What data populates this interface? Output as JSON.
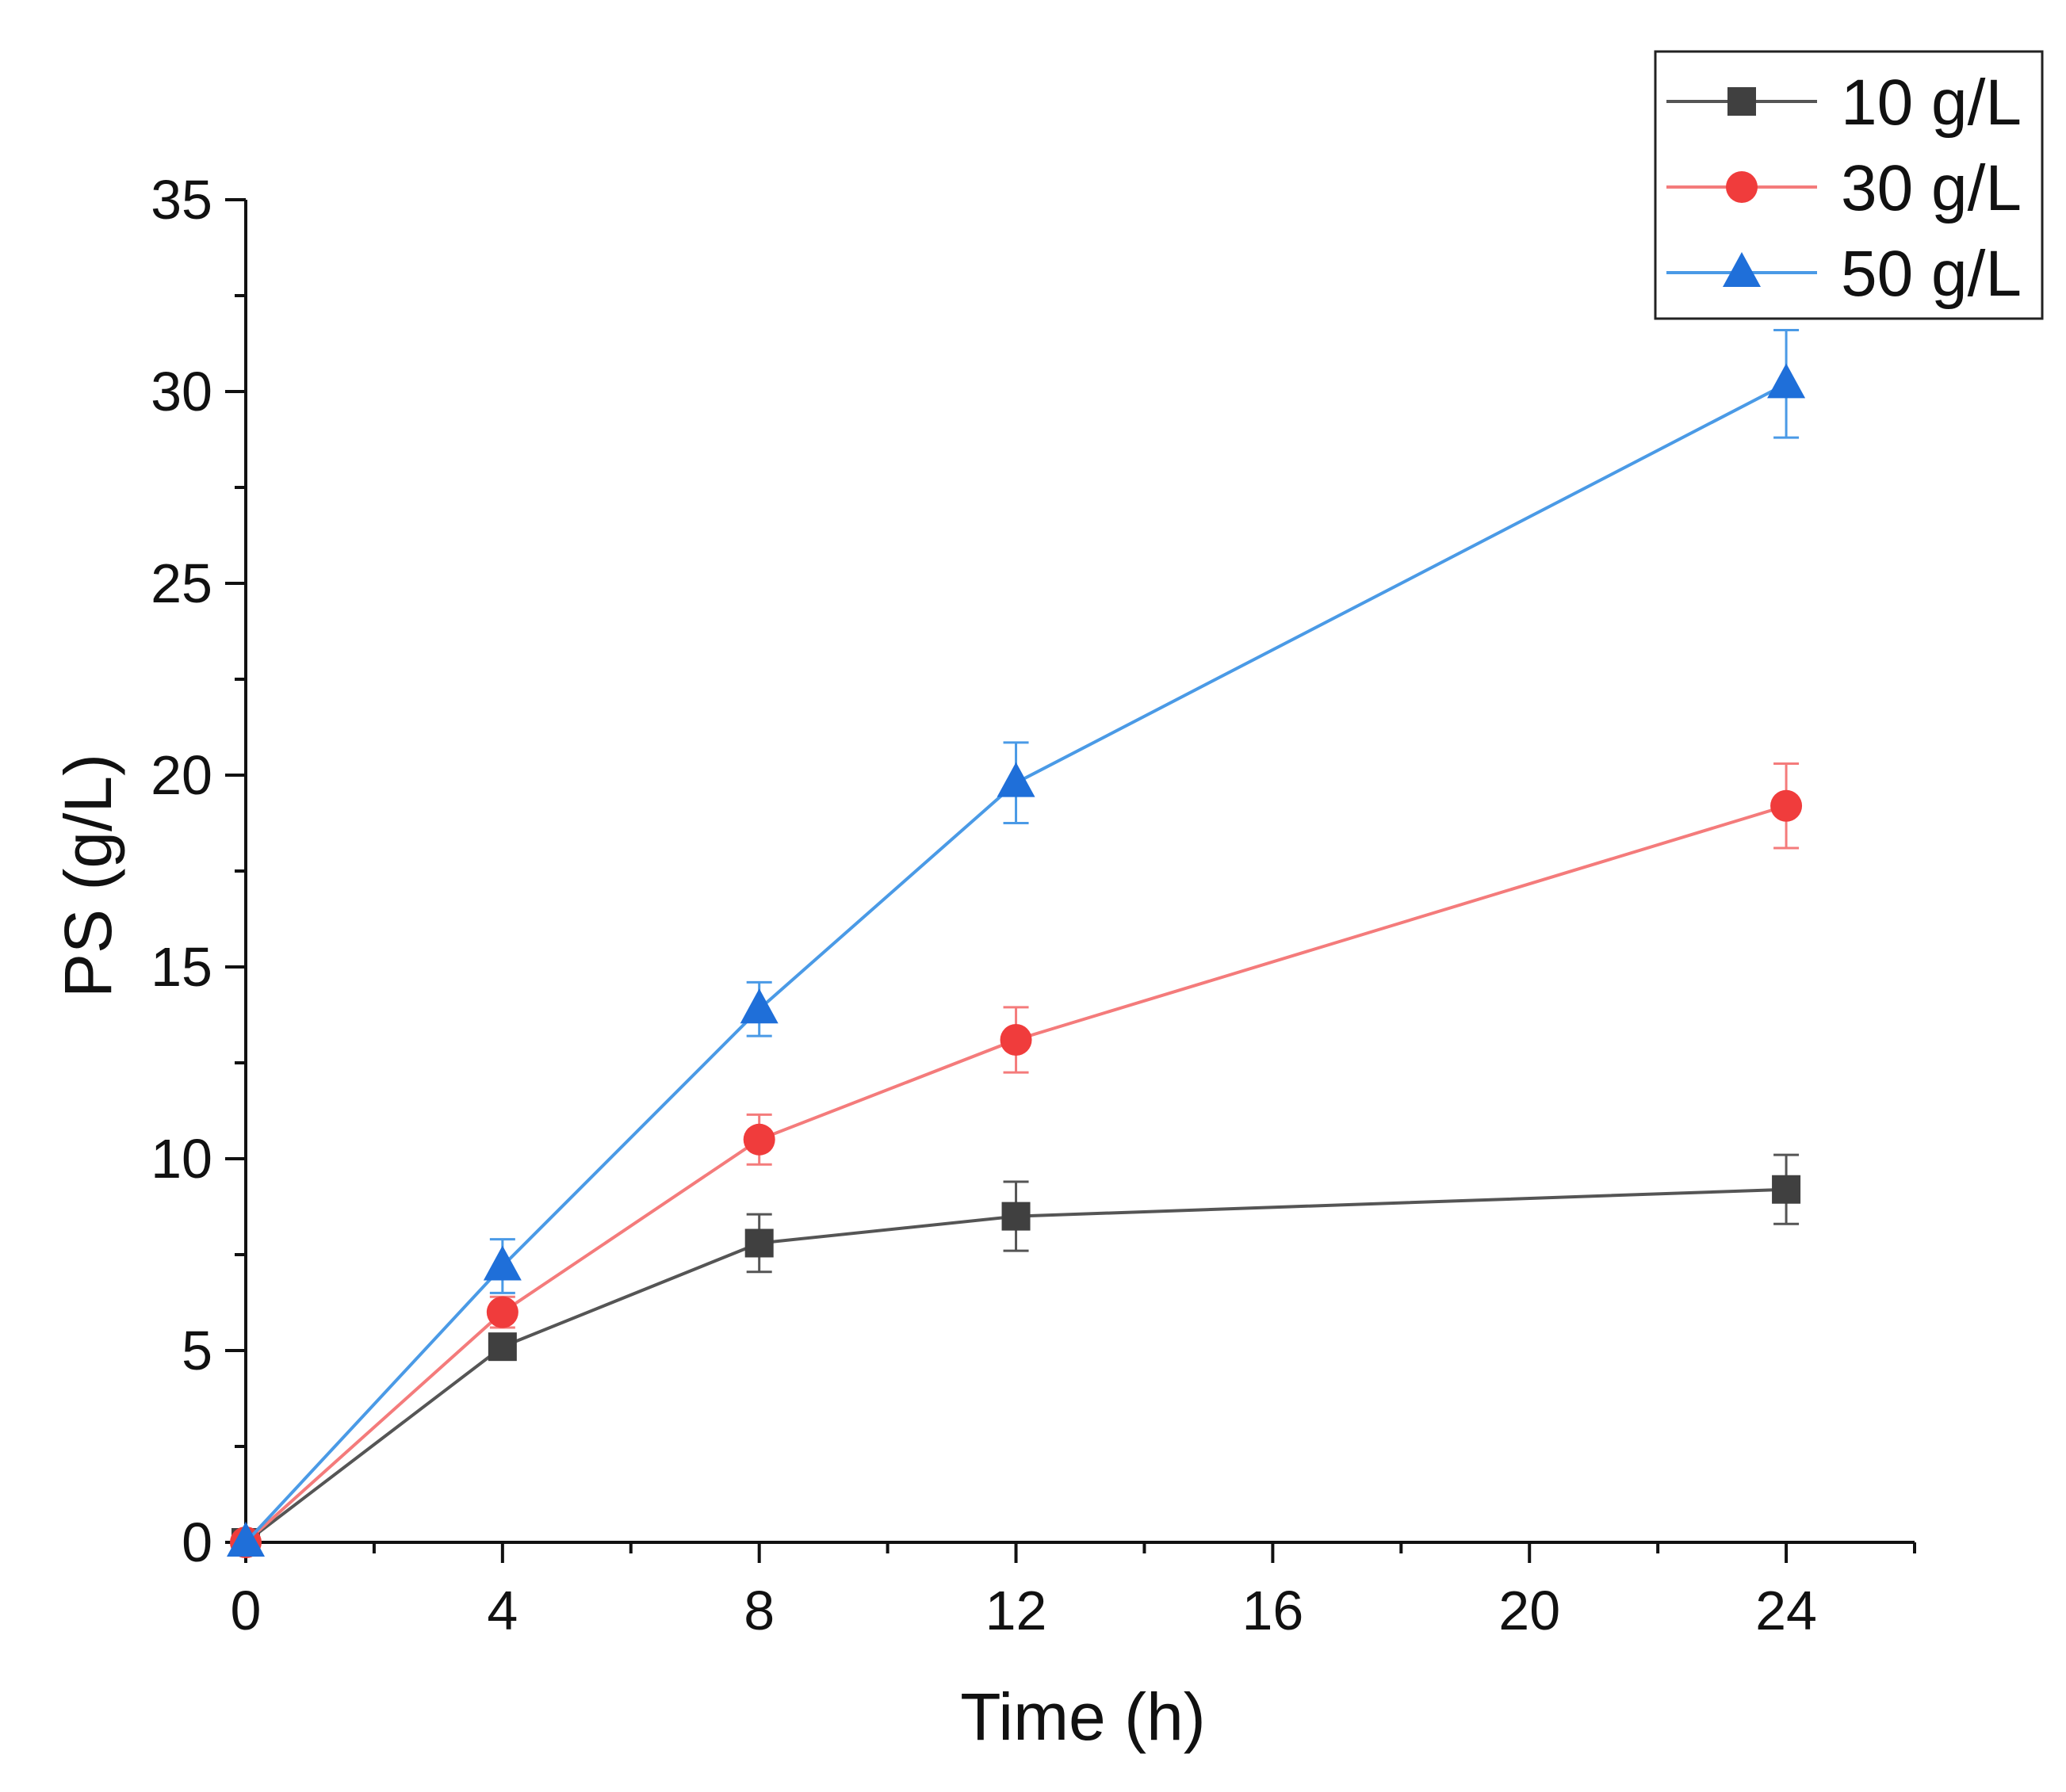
{
  "chart_data": {
    "type": "line",
    "title": "",
    "xlabel": "Time (h)",
    "ylabel": "PS (g/L)",
    "xlim": [
      0,
      26
    ],
    "ylim": [
      0,
      35
    ],
    "xticks": [
      0,
      4,
      8,
      12,
      16,
      20,
      24
    ],
    "yticks": [
      0,
      5,
      10,
      15,
      20,
      25,
      30,
      35
    ],
    "grid": false,
    "legend_position": "top-right",
    "x": [
      0,
      4,
      8,
      12,
      24
    ],
    "series": [
      {
        "name": "10 g/L",
        "marker": "square",
        "color": "#555555",
        "marker_color": "#404040",
        "values": [
          0,
          5.1,
          7.8,
          8.5,
          9.2
        ],
        "errors": [
          0,
          0.3,
          0.75,
          0.9,
          0.9
        ]
      },
      {
        "name": "30 g/L",
        "marker": "circle",
        "color": "#f47b7b",
        "marker_color": "#f03c3c",
        "values": [
          0,
          6.0,
          10.5,
          13.1,
          19.2
        ],
        "errors": [
          0,
          0.4,
          0.65,
          0.85,
          1.1
        ]
      },
      {
        "name": "50 g/L",
        "marker": "triangle",
        "color": "#4a9ae6",
        "marker_color": "#1f6fd9",
        "values": [
          0,
          7.2,
          13.9,
          19.8,
          30.2
        ],
        "errors": [
          0,
          0.7,
          0.7,
          1.05,
          1.4
        ]
      }
    ]
  }
}
